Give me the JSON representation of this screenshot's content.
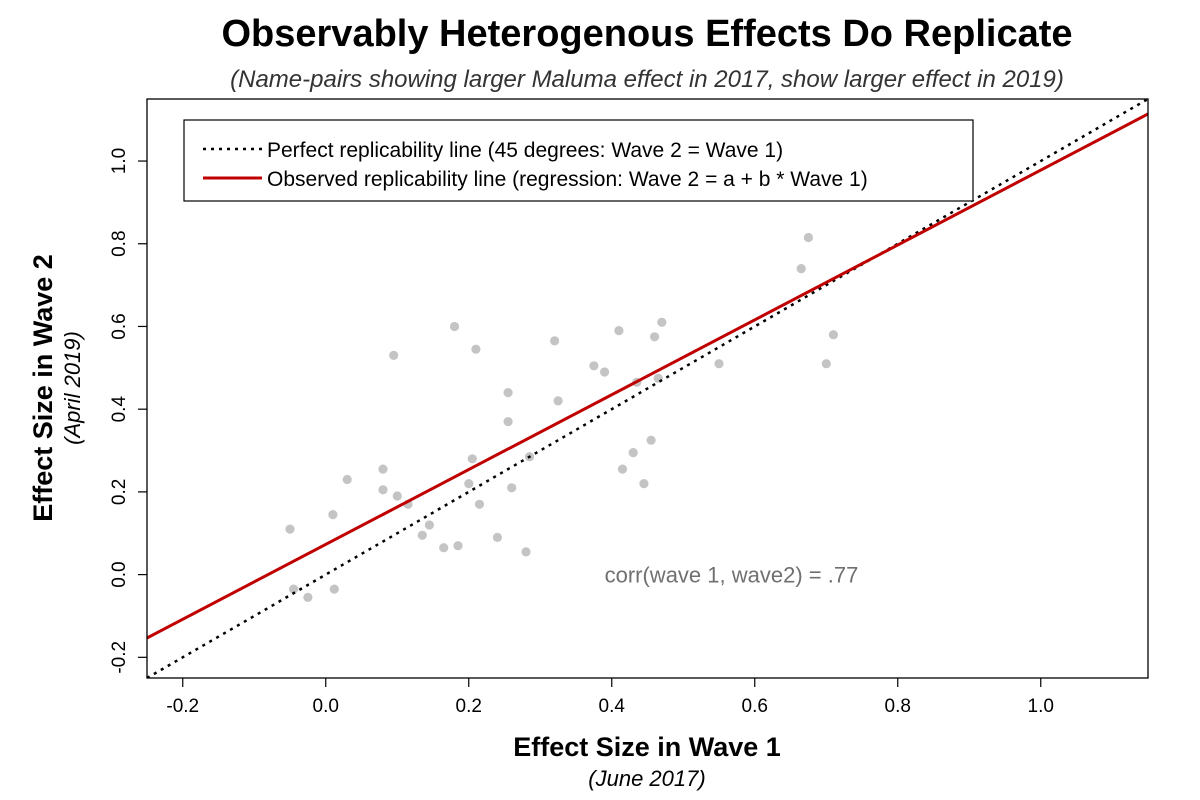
{
  "chart_data": {
    "type": "scatter",
    "title": "Observably Heterogenous Effects Do Replicate",
    "subtitle": "(Name-pairs showing larger Maluma effect in 2017, show larger effect in 2019)",
    "xlabel": "Effect Size in Wave 1",
    "xlabel_sub": "(June 2017)",
    "ylabel": "Effect Size in Wave 2",
    "ylabel_sub": "(April 2019)",
    "xlim": [
      -0.25,
      1.15
    ],
    "ylim": [
      -0.25,
      1.15
    ],
    "x_ticks": [
      -0.2,
      0.0,
      0.2,
      0.4,
      0.6,
      0.8,
      1.0
    ],
    "x_tick_labels": [
      "-0.2",
      "0.0",
      "0.2",
      "0.4",
      "0.6",
      "0.8",
      "1.0"
    ],
    "y_ticks": [
      -0.2,
      0.0,
      0.2,
      0.4,
      0.6,
      0.8,
      1.0
    ],
    "y_tick_labels": [
      "-0.2",
      "0.0",
      "0.2",
      "0.4",
      "0.6",
      "0.8",
      "1.0"
    ],
    "grid": false,
    "legend_position": "top-left",
    "legend": [
      {
        "label": "Perfect  replicability  line  (45 degrees: Wave 2 =  Wave 1)",
        "style": "dotted",
        "color": "#000000"
      },
      {
        "label": "Observed replicability line (regression:  Wave 2 = a + b * Wave 1)",
        "style": "solid",
        "color": "#c00000"
      }
    ],
    "lines": {
      "perfect": {
        "intercept": 0.0,
        "slope": 1.0,
        "color": "#000000"
      },
      "observed": {
        "intercept": 0.073,
        "slope": 0.905,
        "color": "#c00000"
      }
    },
    "annotation": "corr(wave 1, wave2) = .77",
    "annotation_pos": [
      0.39,
      0.0
    ],
    "point_color": "#c4c4c4",
    "points": [
      {
        "x": -0.05,
        "y": 0.11
      },
      {
        "x": -0.045,
        "y": -0.035
      },
      {
        "x": -0.025,
        "y": -0.055
      },
      {
        "x": 0.01,
        "y": 0.145
      },
      {
        "x": 0.012,
        "y": -0.035
      },
      {
        "x": 0.03,
        "y": 0.23
      },
      {
        "x": 0.08,
        "y": 0.255
      },
      {
        "x": 0.08,
        "y": 0.205
      },
      {
        "x": 0.095,
        "y": 0.53
      },
      {
        "x": 0.1,
        "y": 0.19
      },
      {
        "x": 0.115,
        "y": 0.17
      },
      {
        "x": 0.135,
        "y": 0.095
      },
      {
        "x": 0.145,
        "y": 0.12
      },
      {
        "x": 0.165,
        "y": 0.065
      },
      {
        "x": 0.18,
        "y": 0.6
      },
      {
        "x": 0.185,
        "y": 0.07
      },
      {
        "x": 0.2,
        "y": 0.22
      },
      {
        "x": 0.205,
        "y": 0.28
      },
      {
        "x": 0.21,
        "y": 0.545
      },
      {
        "x": 0.215,
        "y": 0.17
      },
      {
        "x": 0.24,
        "y": 0.09
      },
      {
        "x": 0.255,
        "y": 0.44
      },
      {
        "x": 0.255,
        "y": 0.37
      },
      {
        "x": 0.26,
        "y": 0.21
      },
      {
        "x": 0.28,
        "y": 0.055
      },
      {
        "x": 0.285,
        "y": 0.285
      },
      {
        "x": 0.32,
        "y": 0.565
      },
      {
        "x": 0.325,
        "y": 0.42
      },
      {
        "x": 0.375,
        "y": 0.505
      },
      {
        "x": 0.39,
        "y": 0.49
      },
      {
        "x": 0.41,
        "y": 0.59
      },
      {
        "x": 0.415,
        "y": 0.255
      },
      {
        "x": 0.43,
        "y": 0.295
      },
      {
        "x": 0.435,
        "y": 0.465
      },
      {
        "x": 0.445,
        "y": 0.22
      },
      {
        "x": 0.455,
        "y": 0.325
      },
      {
        "x": 0.46,
        "y": 0.575
      },
      {
        "x": 0.47,
        "y": 0.61
      },
      {
        "x": 0.465,
        "y": 0.475
      },
      {
        "x": 0.55,
        "y": 0.51
      },
      {
        "x": 0.665,
        "y": 0.74
      },
      {
        "x": 0.675,
        "y": 0.815
      },
      {
        "x": 0.7,
        "y": 0.51
      },
      {
        "x": 0.71,
        "y": 0.58
      }
    ]
  }
}
